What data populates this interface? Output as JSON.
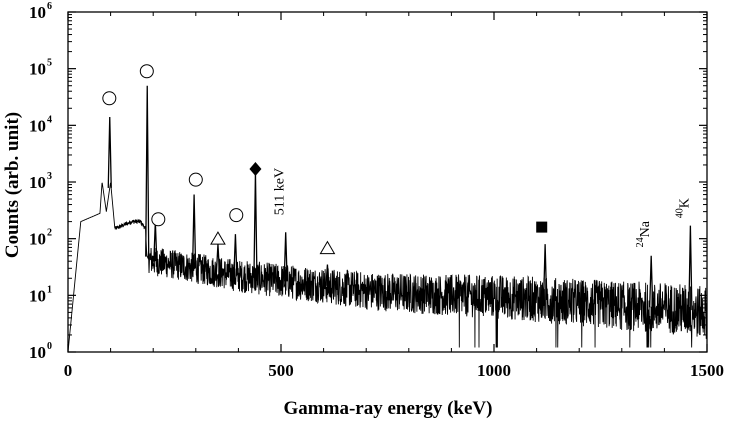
{
  "chart_data": {
    "type": "line",
    "title": "",
    "xlabel": "Gamma-ray energy (keV)",
    "ylabel": "Counts (arb. unit)",
    "xlim": [
      0,
      1500
    ],
    "ylim": [
      1,
      1000000
    ],
    "yscale": "log",
    "grid": false,
    "x_ticks": [
      "0",
      "500",
      "1000",
      "1500"
    ],
    "y_ticks": [
      {
        "base": "10",
        "exp": "0"
      },
      {
        "base": "10",
        "exp": "1"
      },
      {
        "base": "10",
        "exp": "2"
      },
      {
        "base": "10",
        "exp": "3"
      },
      {
        "base": "10",
        "exp": "4"
      },
      {
        "base": "10",
        "exp": "5"
      },
      {
        "base": "10",
        "exp": "6"
      }
    ],
    "spectrum_baseline": {
      "x": [
        0,
        30,
        60,
        75,
        80,
        90,
        100,
        110,
        150,
        170,
        182,
        185,
        188,
        200,
        300,
        400,
        500,
        600,
        700,
        800,
        900,
        1000,
        1100,
        1200,
        1300,
        1400,
        1460,
        1480,
        1500
      ],
      "y": [
        1,
        200,
        250,
        280,
        1000,
        300,
        1000,
        150,
        200,
        200,
        150,
        50,
        45,
        40,
        30,
        22,
        18,
        15,
        12,
        11,
        10,
        9.5,
        8.5,
        7.5,
        6.5,
        6,
        5.5,
        5,
        5
      ]
    },
    "peaks": [
      {
        "x": 98,
        "y": 14000
      },
      {
        "x": 186,
        "y": 50000
      },
      {
        "x": 205,
        "y": 200
      },
      {
        "x": 296,
        "y": 600
      },
      {
        "x": 352,
        "y": 80
      },
      {
        "x": 393,
        "y": 120
      },
      {
        "x": 440,
        "y": 1500
      },
      {
        "x": 511,
        "y": 130
      },
      {
        "x": 609,
        "y": 35
      },
      {
        "x": 1120,
        "y": 80
      },
      {
        "x": 1369,
        "y": 50
      },
      {
        "x": 1461,
        "y": 170
      }
    ],
    "markers": [
      {
        "shape": "circle",
        "x": 97,
        "y": 30000
      },
      {
        "shape": "circle",
        "x": 185,
        "y": 90000
      },
      {
        "shape": "circle",
        "x": 212,
        "y": 220
      },
      {
        "shape": "circle",
        "x": 300,
        "y": 1100
      },
      {
        "shape": "circle",
        "x": 395,
        "y": 260
      },
      {
        "shape": "triangle",
        "x": 352,
        "y": 100
      },
      {
        "shape": "triangle",
        "x": 609,
        "y": 68
      },
      {
        "shape": "diamond",
        "x": 440,
        "y": 1700
      },
      {
        "shape": "square",
        "x": 1112,
        "y": 160
      }
    ],
    "annotations": [
      {
        "text": "511 keV",
        "x": 511,
        "y": 260
      },
      {
        "sup": "24",
        "text": "Na",
        "x": 1369,
        "y": 70
      },
      {
        "sup": "40",
        "text": "K",
        "x": 1461,
        "y": 230
      }
    ]
  }
}
